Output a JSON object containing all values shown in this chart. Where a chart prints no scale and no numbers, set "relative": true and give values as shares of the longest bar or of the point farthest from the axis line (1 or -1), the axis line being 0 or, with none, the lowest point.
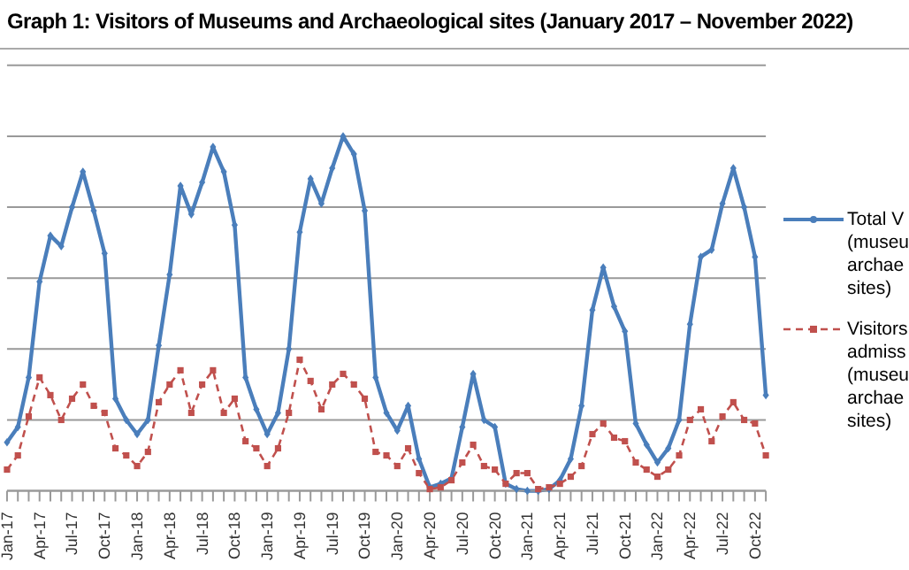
{
  "chart_data": {
    "type": "line",
    "title": "Graph 1: Visitors of Museums and Archaeological sites (January 2017 – November 2022)",
    "relative": true,
    "grid": "y",
    "legend": "right",
    "categories": [
      "Jan-17",
      null,
      null,
      "Apr-17",
      null,
      null,
      "Jul-17",
      null,
      null,
      "Oct-17",
      null,
      null,
      "Jan-18",
      null,
      null,
      "Apr-18",
      null,
      null,
      "Jul-18",
      null,
      null,
      "Oct-18",
      null,
      null,
      "Jan-19",
      null,
      null,
      "Apr-19",
      null,
      null,
      "Jul-19",
      null,
      null,
      "Oct-19",
      null,
      null,
      "Jan-20",
      null,
      null,
      "Apr-20",
      null,
      null,
      "Jul-20",
      null,
      null,
      "Oct-20",
      null,
      null,
      "Jan-21",
      null,
      null,
      "Apr-21",
      null,
      null,
      "Jul-21",
      null,
      null,
      "Oct-21",
      null,
      null,
      "Jan-22",
      null,
      null,
      "Apr-22",
      null,
      null,
      "Jul-22",
      null,
      null,
      "Oct-22",
      null
    ],
    "series": [
      {
        "name": "Total V\n(museu\narchae\nsites)",
        "color": "#4a7ebb",
        "marker": "diamond",
        "line_style": "solid",
        "values": [
          0.137,
          0.18,
          0.32,
          0.59,
          0.72,
          0.69,
          0.8,
          0.9,
          0.79,
          0.67,
          0.26,
          0.2,
          0.16,
          0.2,
          0.41,
          0.61,
          0.86,
          0.78,
          0.87,
          0.97,
          0.9,
          0.75,
          0.32,
          0.23,
          0.16,
          0.22,
          0.4,
          0.73,
          0.88,
          0.81,
          0.91,
          1,
          0.95,
          0.79,
          0.32,
          0.22,
          0.17,
          0.24,
          0.09,
          0.01,
          0.02,
          0.035,
          0.18,
          0.33,
          0.2,
          0.18,
          0.02,
          0.005,
          0,
          0,
          0.005,
          0.03,
          0.09,
          0.24,
          0.51,
          0.63,
          0.52,
          0.45,
          0.19,
          0.13,
          0.08,
          0.12,
          0.2,
          0.47,
          0.66,
          0.68,
          0.81,
          0.91,
          0.8,
          0.66,
          0.27
        ]
      },
      {
        "name": "Visitors\nadmiss\n(museu\narchae\nsites)",
        "color": "#c0504d",
        "marker": "square",
        "line_style": "dashed",
        "values": [
          0.06,
          0.1,
          0.21,
          0.32,
          0.27,
          0.2,
          0.26,
          0.3,
          0.24,
          0.22,
          0.12,
          0.1,
          0.07,
          0.11,
          0.25,
          0.3,
          0.34,
          0.22,
          0.3,
          0.34,
          0.22,
          0.26,
          0.14,
          0.12,
          0.07,
          0.12,
          0.22,
          0.37,
          0.31,
          0.23,
          0.3,
          0.33,
          0.3,
          0.26,
          0.11,
          0.1,
          0.07,
          0.12,
          0.05,
          0.005,
          0.01,
          0.03,
          0.08,
          0.13,
          0.07,
          0.06,
          0.02,
          0.05,
          0.05,
          0.005,
          0.01,
          0.02,
          0.04,
          0.07,
          0.16,
          0.19,
          0.15,
          0.14,
          0.08,
          0.06,
          0.04,
          0.06,
          0.1,
          0.2,
          0.23,
          0.14,
          0.21,
          0.25,
          0.2,
          0.19,
          0.1
        ]
      }
    ]
  }
}
